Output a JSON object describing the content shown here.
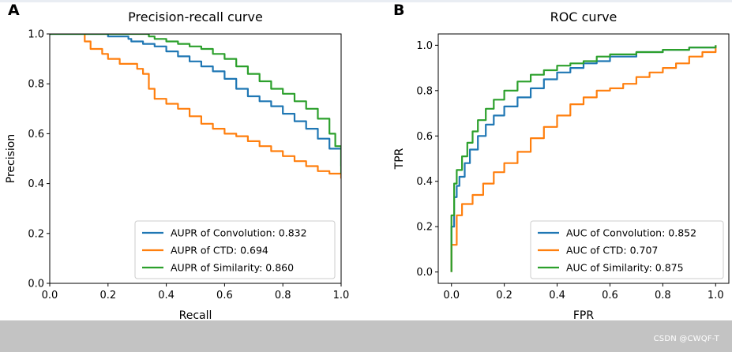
{
  "chart_data": [
    {
      "panel_label": "A",
      "type": "line",
      "title": "Precision-recall curve",
      "xlabel": "Recall",
      "ylabel": "Precision",
      "xlim": [
        0,
        1.0
      ],
      "ylim": [
        0,
        1.0
      ],
      "xticks": [
        0.0,
        0.2,
        0.4,
        0.6,
        0.8,
        1.0
      ],
      "yticks": [
        0.0,
        0.2,
        0.4,
        0.6,
        0.8,
        1.0
      ],
      "xtick_labels": [
        "0.0",
        "0.2",
        "0.4",
        "0.6",
        "0.8",
        "1.0"
      ],
      "ytick_labels": [
        "0.0",
        "0.2",
        "0.4",
        "0.6",
        "0.8",
        "1.0"
      ],
      "grid": false,
      "legend_position": "lower-right",
      "series": [
        {
          "name": "AUPR of Convolution: 0.832",
          "color": "#1f77b4",
          "points": [
            [
              0,
              1.0
            ],
            [
              0.2,
              1.0
            ],
            [
              0.2,
              0.99
            ],
            [
              0.25,
              0.99
            ],
            [
              0.27,
              0.98
            ],
            [
              0.28,
              0.97
            ],
            [
              0.32,
              0.96
            ],
            [
              0.36,
              0.95
            ],
            [
              0.4,
              0.93
            ],
            [
              0.44,
              0.91
            ],
            [
              0.48,
              0.89
            ],
            [
              0.52,
              0.87
            ],
            [
              0.56,
              0.85
            ],
            [
              0.6,
              0.82
            ],
            [
              0.64,
              0.78
            ],
            [
              0.68,
              0.75
            ],
            [
              0.72,
              0.73
            ],
            [
              0.76,
              0.71
            ],
            [
              0.8,
              0.68
            ],
            [
              0.84,
              0.65
            ],
            [
              0.88,
              0.62
            ],
            [
              0.92,
              0.58
            ],
            [
              0.96,
              0.54
            ],
            [
              1.0,
              0.47
            ]
          ]
        },
        {
          "name": "AUPR of CTD: 0.694",
          "color": "#ff7f0e",
          "points": [
            [
              0.12,
              1.0
            ],
            [
              0.12,
              0.97
            ],
            [
              0.14,
              0.94
            ],
            [
              0.18,
              0.92
            ],
            [
              0.2,
              0.9
            ],
            [
              0.24,
              0.88
            ],
            [
              0.3,
              0.86
            ],
            [
              0.32,
              0.84
            ],
            [
              0.34,
              0.78
            ],
            [
              0.36,
              0.74
            ],
            [
              0.4,
              0.72
            ],
            [
              0.44,
              0.7
            ],
            [
              0.48,
              0.67
            ],
            [
              0.52,
              0.64
            ],
            [
              0.56,
              0.62
            ],
            [
              0.6,
              0.6
            ],
            [
              0.64,
              0.59
            ],
            [
              0.68,
              0.57
            ],
            [
              0.72,
              0.55
            ],
            [
              0.76,
              0.53
            ],
            [
              0.8,
              0.51
            ],
            [
              0.84,
              0.49
            ],
            [
              0.88,
              0.47
            ],
            [
              0.92,
              0.45
            ],
            [
              0.96,
              0.44
            ],
            [
              1.0,
              0.42
            ]
          ]
        },
        {
          "name": "AUPR of Similarity: 0.860",
          "color": "#2ca02c",
          "points": [
            [
              0,
              1.0
            ],
            [
              0.34,
              1.0
            ],
            [
              0.34,
              0.99
            ],
            [
              0.36,
              0.98
            ],
            [
              0.4,
              0.97
            ],
            [
              0.44,
              0.96
            ],
            [
              0.48,
              0.95
            ],
            [
              0.52,
              0.94
            ],
            [
              0.56,
              0.92
            ],
            [
              0.6,
              0.9
            ],
            [
              0.64,
              0.87
            ],
            [
              0.68,
              0.84
            ],
            [
              0.72,
              0.81
            ],
            [
              0.76,
              0.78
            ],
            [
              0.8,
              0.76
            ],
            [
              0.84,
              0.73
            ],
            [
              0.88,
              0.7
            ],
            [
              0.92,
              0.66
            ],
            [
              0.96,
              0.6
            ],
            [
              0.98,
              0.55
            ],
            [
              1.0,
              0.44
            ]
          ]
        }
      ]
    },
    {
      "panel_label": "B",
      "type": "line",
      "title": "ROC curve",
      "xlabel": "FPR",
      "ylabel": "TPR",
      "xlim": [
        0,
        1.0
      ],
      "ylim": [
        0,
        1.0
      ],
      "xticks": [
        0.0,
        0.2,
        0.4,
        0.6,
        0.8,
        1.0
      ],
      "yticks": [
        0.0,
        0.2,
        0.4,
        0.6,
        0.8,
        1.0
      ],
      "xtick_labels": [
        "0.0",
        "0.2",
        "0.4",
        "0.6",
        "0.8",
        "1.0"
      ],
      "ytick_labels": [
        "0.0",
        "0.2",
        "0.4",
        "0.6",
        "0.8",
        "1.0"
      ],
      "grid": false,
      "legend_position": "lower-right",
      "series": [
        {
          "name": "AUC of Convolution: 0.852",
          "color": "#1f77b4",
          "points": [
            [
              0,
              0
            ],
            [
              0,
              0.2
            ],
            [
              0.01,
              0.33
            ],
            [
              0.02,
              0.38
            ],
            [
              0.03,
              0.42
            ],
            [
              0.05,
              0.48
            ],
            [
              0.07,
              0.54
            ],
            [
              0.1,
              0.6
            ],
            [
              0.13,
              0.65
            ],
            [
              0.16,
              0.69
            ],
            [
              0.2,
              0.73
            ],
            [
              0.25,
              0.77
            ],
            [
              0.3,
              0.81
            ],
            [
              0.35,
              0.85
            ],
            [
              0.4,
              0.88
            ],
            [
              0.45,
              0.9
            ],
            [
              0.5,
              0.92
            ],
            [
              0.55,
              0.93
            ],
            [
              0.6,
              0.95
            ],
            [
              0.7,
              0.97
            ],
            [
              0.8,
              0.98
            ],
            [
              0.9,
              0.99
            ],
            [
              1.0,
              1.0
            ]
          ]
        },
        {
          "name": "AUC of CTD: 0.707",
          "color": "#ff7f0e",
          "points": [
            [
              0,
              0
            ],
            [
              0,
              0.12
            ],
            [
              0.02,
              0.25
            ],
            [
              0.04,
              0.3
            ],
            [
              0.08,
              0.34
            ],
            [
              0.12,
              0.39
            ],
            [
              0.16,
              0.44
            ],
            [
              0.2,
              0.48
            ],
            [
              0.25,
              0.53
            ],
            [
              0.3,
              0.59
            ],
            [
              0.35,
              0.64
            ],
            [
              0.4,
              0.69
            ],
            [
              0.45,
              0.74
            ],
            [
              0.5,
              0.77
            ],
            [
              0.55,
              0.8
            ],
            [
              0.6,
              0.81
            ],
            [
              0.65,
              0.83
            ],
            [
              0.7,
              0.86
            ],
            [
              0.75,
              0.88
            ],
            [
              0.8,
              0.9
            ],
            [
              0.85,
              0.92
            ],
            [
              0.9,
              0.95
            ],
            [
              0.95,
              0.97
            ],
            [
              1.0,
              1.0
            ]
          ]
        },
        {
          "name": "AUC of Similarity: 0.875",
          "color": "#2ca02c",
          "points": [
            [
              0,
              0
            ],
            [
              0,
              0.25
            ],
            [
              0.01,
              0.39
            ],
            [
              0.02,
              0.45
            ],
            [
              0.04,
              0.51
            ],
            [
              0.06,
              0.57
            ],
            [
              0.08,
              0.62
            ],
            [
              0.1,
              0.67
            ],
            [
              0.13,
              0.72
            ],
            [
              0.16,
              0.76
            ],
            [
              0.2,
              0.8
            ],
            [
              0.25,
              0.84
            ],
            [
              0.3,
              0.87
            ],
            [
              0.35,
              0.89
            ],
            [
              0.4,
              0.91
            ],
            [
              0.45,
              0.92
            ],
            [
              0.5,
              0.93
            ],
            [
              0.55,
              0.95
            ],
            [
              0.6,
              0.96
            ],
            [
              0.7,
              0.97
            ],
            [
              0.8,
              0.98
            ],
            [
              0.9,
              0.99
            ],
            [
              1.0,
              1.0
            ]
          ]
        }
      ]
    }
  ],
  "watermark": "CSDN @CWQF-T",
  "colors": {
    "footer_bar": "#c3c3c3",
    "axes": "#000000"
  }
}
